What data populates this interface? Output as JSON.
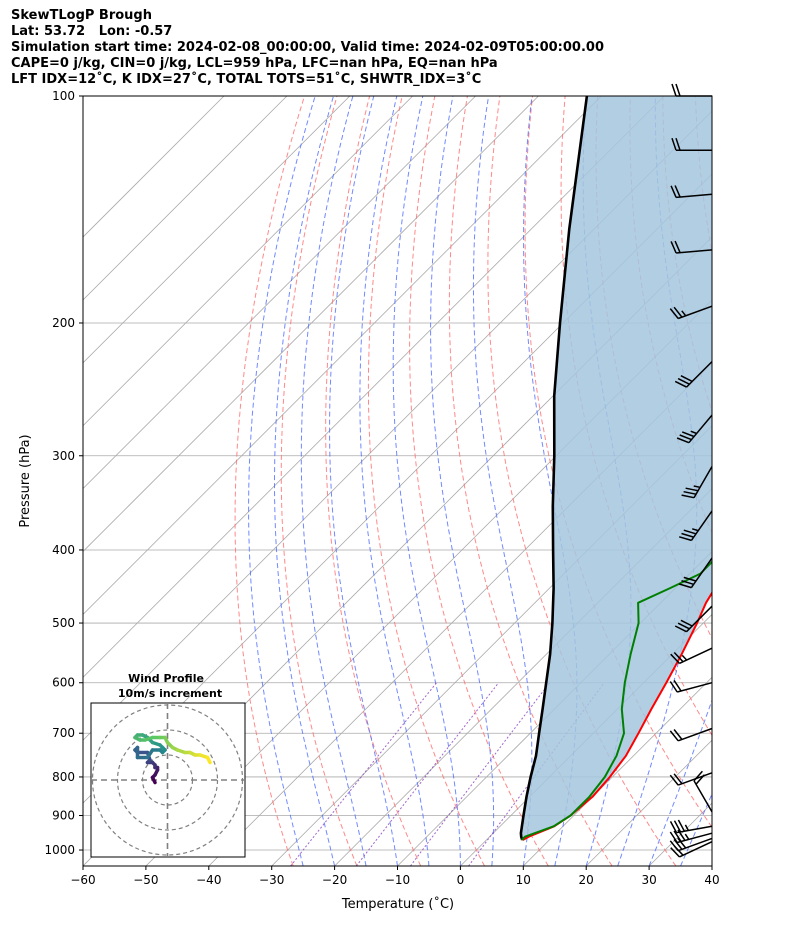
{
  "header": {
    "line1": "SkewTLogP Brough",
    "line2": "Lat: 53.72   Lon: -0.57",
    "line3": "Simulation start time: 2024-02-08_00:00:00, Valid time: 2024-02-09T05:00:00.00",
    "line4": "CAPE=0 j/kg, CIN=0 j/kg, LCL=959 hPa, LFC=nan hPa, EQ=nan hPa",
    "line5": "LFT IDX=12$^\\circ$C, K IDX=27$^\\circ$C, TOTAL TOTS=51$^\\circ$C, SHWTR_IDX=3$^\\circ$C"
  },
  "chart_data": [
    {
      "type": "line",
      "subtype": "skew-t log-p",
      "xlabel": "Temperature ($^\\circ$C)",
      "ylabel": "Pressure (hPa)",
      "xlim": [
        -60,
        40
      ],
      "ylim": [
        1050,
        100
      ],
      "yscale": "log",
      "grid": true,
      "x_ticks": [
        -60,
        -50,
        -40,
        -30,
        -20,
        -10,
        0,
        10,
        20,
        30,
        40
      ],
      "y_ticks": [
        1000,
        900,
        800,
        700,
        600,
        500,
        400,
        300,
        200,
        100
      ],
      "colors": {
        "temperature": "#ff0000",
        "dewpoint": "#008000",
        "parcel": "#000000",
        "cape_fill": "#a4c6de",
        "dry_adiabats": "#ff6b6b",
        "moist_adiabats": "#4d6bff",
        "mixing_ratio": "#8a3fbf",
        "isotherms": "#aaaaaa",
        "barbs": "#000000"
      },
      "series": [
        {
          "key": "temperature",
          "pressure": [
            970,
            960,
            930,
            900,
            850,
            800,
            750,
            700,
            650,
            600,
            550,
            500,
            470,
            430,
            400,
            350,
            300,
            270,
            250,
            235,
            220,
            210,
            200,
            185,
            170,
            150,
            130,
            115,
            100
          ],
          "values": [
            5.8,
            6.2,
            8.6,
            9.5,
            10.0,
            9.6,
            8.8,
            7.2,
            5.4,
            3.6,
            1.5,
            -1.0,
            -2.8,
            -4.6,
            -6.4,
            -10.4,
            -15.7,
            -18.7,
            -19.9,
            -21.4,
            -22.6,
            -24.2,
            -25.6,
            -28.0,
            -31.0,
            -35.0,
            -40.0,
            -44.4,
            -49.5
          ]
        },
        {
          "key": "dewpoint",
          "pressure": [
            970,
            960,
            930,
            900,
            850,
            800,
            750,
            700,
            650,
            600,
            550,
            500,
            470,
            450,
            430,
            400,
            350,
            300,
            270,
            250,
            235,
            220,
            200,
            180,
            160,
            140,
            120,
            100
          ],
          "values": [
            5.6,
            5.6,
            8.5,
            9.5,
            9.5,
            8.8,
            7.3,
            4.9,
            0.7,
            -3.0,
            -6.6,
            -10.3,
            -13.6,
            -10.9,
            -8.3,
            -8.4,
            -12.4,
            -18.7,
            -21.8,
            -21.8,
            -22.8,
            -25.5,
            -29.8,
            -35.0,
            -40.0,
            -47.0,
            -55.0,
            -61.9
          ]
        },
        {
          "key": "parcel",
          "pressure": [
            970,
            960,
            950,
            900,
            850,
            800,
            750,
            700,
            650,
            600,
            550,
            500,
            450,
            400,
            350,
            300,
            250,
            200,
            150,
            100
          ],
          "values": [
            5.7,
            5.0,
            4.4,
            2.0,
            -0.5,
            -3.0,
            -5.5,
            -8.6,
            -11.9,
            -15.5,
            -19.4,
            -24.0,
            -29.3,
            -35.5,
            -42.5,
            -50.3,
            -59.8,
            -70.5,
            -84.0,
            -102.3
          ]
        }
      ],
      "wind_barbs": [
        {
          "pressure": 975,
          "dir_deg": 245,
          "speed_kt": 20
        },
        {
          "pressure": 965,
          "dir_deg": 250,
          "speed_kt": 30
        },
        {
          "pressure": 950,
          "dir_deg": 255,
          "speed_kt": 35
        },
        {
          "pressure": 930,
          "dir_deg": 260,
          "speed_kt": 35
        },
        {
          "pressure": 890,
          "dir_deg": 330,
          "speed_kt": 20
        },
        {
          "pressure": 790,
          "dir_deg": 250,
          "speed_kt": 20
        },
        {
          "pressure": 690,
          "dir_deg": 250,
          "speed_kt": 20
        },
        {
          "pressure": 600,
          "dir_deg": 255,
          "speed_kt": 20
        },
        {
          "pressure": 540,
          "dir_deg": 245,
          "speed_kt": 25
        },
        {
          "pressure": 475,
          "dir_deg": 225,
          "speed_kt": 30
        },
        {
          "pressure": 410,
          "dir_deg": 215,
          "speed_kt": 30
        },
        {
          "pressure": 355,
          "dir_deg": 215,
          "speed_kt": 35
        },
        {
          "pressure": 310,
          "dir_deg": 210,
          "speed_kt": 35
        },
        {
          "pressure": 265,
          "dir_deg": 220,
          "speed_kt": 35
        },
        {
          "pressure": 225,
          "dir_deg": 225,
          "speed_kt": 30
        },
        {
          "pressure": 190,
          "dir_deg": 250,
          "speed_kt": 25
        },
        {
          "pressure": 160,
          "dir_deg": 265,
          "speed_kt": 20
        },
        {
          "pressure": 135,
          "dir_deg": 265,
          "speed_kt": 20
        },
        {
          "pressure": 118,
          "dir_deg": 270,
          "speed_kt": 20
        },
        {
          "pressure": 100,
          "dir_deg": 270,
          "speed_kt": 20
        }
      ]
    },
    {
      "type": "line",
      "subtype": "hodograph",
      "title_line1": "Wind Profile",
      "title_line2": "10m/s increment",
      "ring_increment_ms": 10,
      "rings": [
        10,
        20,
        30
      ],
      "colors": {
        "rings": "#808080",
        "colormap_start": "#440154",
        "colormap_end": "#fde725"
      },
      "series": [
        {
          "name": "wind profile",
          "u": [
            -5,
            -6,
            -5,
            -4,
            -4,
            -5,
            -5,
            -6,
            -8,
            -7,
            -8,
            -12,
            -13,
            -12,
            -12,
            -8,
            -6,
            -3,
            -2,
            -1,
            -2,
            -3,
            -6,
            -8,
            -10,
            -12,
            -13,
            -11,
            -9,
            -6,
            -3,
            -1,
            0,
            2,
            4,
            7,
            9,
            11,
            13,
            16,
            17
          ],
          "v": [
            -1,
            1,
            2,
            4,
            5,
            5,
            6,
            7,
            7,
            8,
            11,
            11,
            12,
            13,
            9,
            9,
            12,
            12,
            11,
            12,
            13,
            14,
            15,
            17,
            18,
            18,
            17,
            16,
            16,
            17,
            17,
            17,
            15,
            13,
            12,
            11,
            11,
            10,
            10,
            9,
            7
          ]
        }
      ]
    }
  ]
}
